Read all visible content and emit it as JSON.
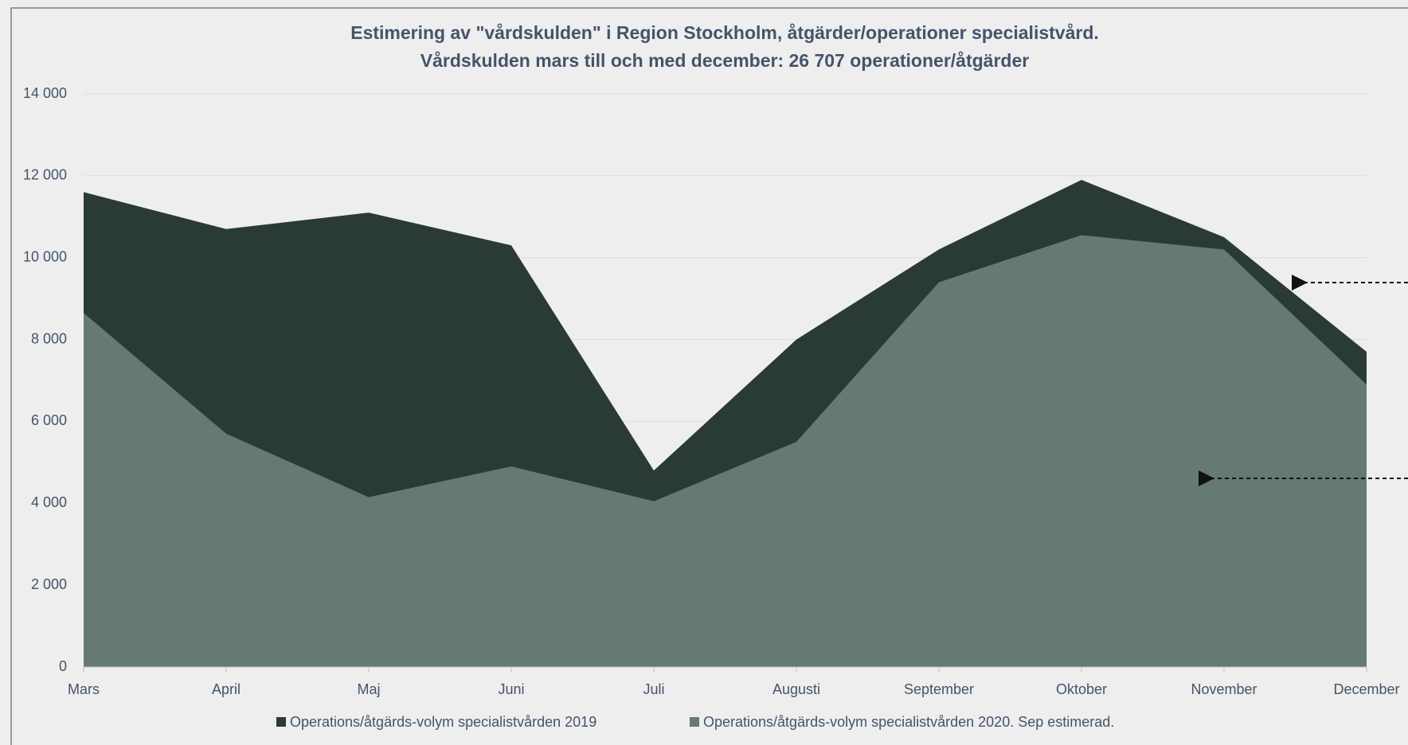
{
  "chart_data": {
    "type": "area",
    "title": "Estimering av \"vårdskulden\" i Region Stockholm, åtgärder/operationer specialistvård.",
    "subtitle": "Vårdskulden mars till och med december: 26 707 operationer/åtgärder",
    "categories": [
      "Mars",
      "April",
      "Maj",
      "Juni",
      "Juli",
      "Augusti",
      "September",
      "Oktober",
      "November",
      "December"
    ],
    "series": [
      {
        "name": "Operations/åtgärds-volym specialistvården 2019",
        "color": "#2a3a34",
        "values": [
          11600,
          10700,
          11100,
          10300,
          4800,
          8000,
          10200,
          11900,
          10500,
          7700
        ]
      },
      {
        "name": "Operations/åtgärds-volym specialistvården  2020. Sep estimerad.",
        "color": "#657a70",
        "values": [
          8650,
          5700,
          4150,
          4900,
          4050,
          5500,
          9400,
          10550,
          10200,
          6900
        ]
      }
    ],
    "ylim": [
      0,
      14000
    ],
    "yticks": [
      0,
      {
        "value": 2000,
        "label": "2 000"
      },
      {
        "value": 4000,
        "label": "4 000"
      },
      {
        "value": 6000,
        "label": "6 000"
      },
      {
        "value": 8000,
        "label": "8 000"
      },
      {
        "value": 10000,
        "label": "10 000"
      },
      {
        "value": 12000,
        "label": "12 000"
      },
      {
        "value": 14000,
        "label": "14 000"
      }
    ],
    "grid": true,
    "legend": "bottom"
  }
}
